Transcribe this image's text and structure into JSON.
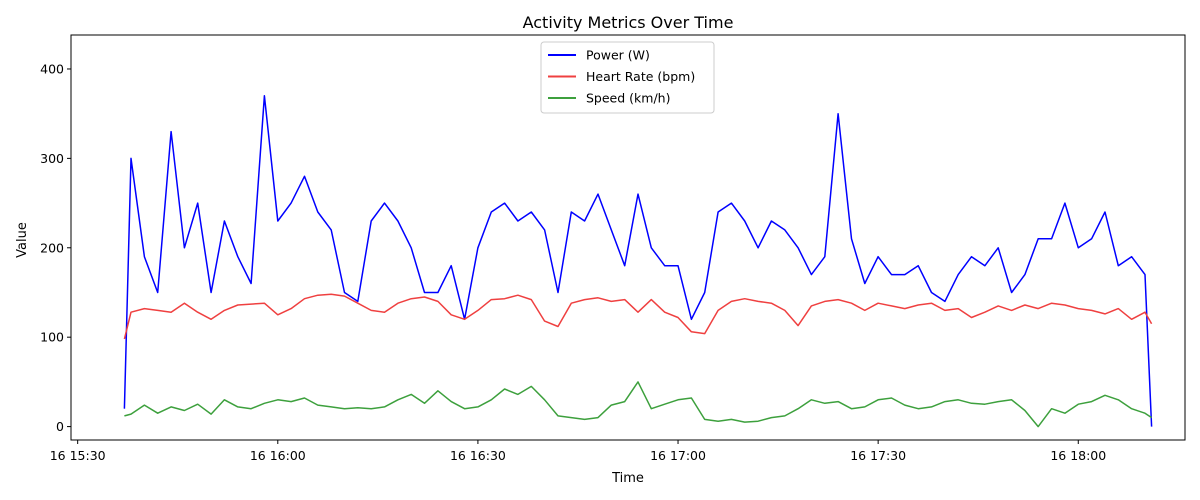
{
  "chart_data": {
    "type": "line",
    "title": "Activity Metrics Over Time",
    "xlabel": "Time",
    "ylabel": "Value",
    "xlim": [
      "2024-01-16 15:29:00",
      "2024-01-16 18:16:00"
    ],
    "ylim": [
      -15,
      438
    ],
    "x_ticks": [
      {
        "label": "16 15:30",
        "t": "2024-01-16 15:30"
      },
      {
        "label": "16 16:00",
        "t": "2024-01-16 16:00"
      },
      {
        "label": "16 16:30",
        "t": "2024-01-16 16:30"
      },
      {
        "label": "16 17:00",
        "t": "2024-01-16 17:00"
      },
      {
        "label": "16 17:30",
        "t": "2024-01-16 17:30"
      },
      {
        "label": "16 18:00",
        "t": "2024-01-16 18:00"
      }
    ],
    "y_ticks": [
      0,
      100,
      200,
      300,
      400
    ],
    "grid": false,
    "legend_position": "top-center",
    "series": [
      {
        "name": "Power (W)",
        "color": "#0000ff",
        "x": [
          "2024-01-16 15:37",
          "2024-01-16 15:38",
          "2024-01-16 15:40",
          "2024-01-16 15:42",
          "2024-01-16 15:44",
          "2024-01-16 15:46",
          "2024-01-16 15:48",
          "2024-01-16 15:50",
          "2024-01-16 15:52",
          "2024-01-16 15:54",
          "2024-01-16 15:56",
          "2024-01-16 15:58",
          "2024-01-16 16:00",
          "2024-01-16 16:02",
          "2024-01-16 16:04",
          "2024-01-16 16:06",
          "2024-01-16 16:08",
          "2024-01-16 16:10",
          "2024-01-16 16:12",
          "2024-01-16 16:14",
          "2024-01-16 16:16",
          "2024-01-16 16:18",
          "2024-01-16 16:20",
          "2024-01-16 16:22",
          "2024-01-16 16:24",
          "2024-01-16 16:26",
          "2024-01-16 16:28",
          "2024-01-16 16:30",
          "2024-01-16 16:32",
          "2024-01-16 16:34",
          "2024-01-16 16:36",
          "2024-01-16 16:38",
          "2024-01-16 16:40",
          "2024-01-16 16:42",
          "2024-01-16 16:44",
          "2024-01-16 16:46",
          "2024-01-16 16:48",
          "2024-01-16 16:50",
          "2024-01-16 16:52",
          "2024-01-16 16:54",
          "2024-01-16 16:56",
          "2024-01-16 16:58",
          "2024-01-16 17:00",
          "2024-01-16 17:02",
          "2024-01-16 17:04",
          "2024-01-16 17:06",
          "2024-01-16 17:08",
          "2024-01-16 17:10",
          "2024-01-16 17:12",
          "2024-01-16 17:14",
          "2024-01-16 17:16",
          "2024-01-16 17:18",
          "2024-01-16 17:20",
          "2024-01-16 17:22",
          "2024-01-16 17:24",
          "2024-01-16 17:26",
          "2024-01-16 17:28",
          "2024-01-16 17:30",
          "2024-01-16 17:32",
          "2024-01-16 17:34",
          "2024-01-16 17:36",
          "2024-01-16 17:38",
          "2024-01-16 17:40",
          "2024-01-16 17:42",
          "2024-01-16 17:44",
          "2024-01-16 17:46",
          "2024-01-16 17:48",
          "2024-01-16 17:50",
          "2024-01-16 17:52",
          "2024-01-16 17:54",
          "2024-01-16 17:56",
          "2024-01-16 17:58",
          "2024-01-16 18:00",
          "2024-01-16 18:02",
          "2024-01-16 18:04",
          "2024-01-16 18:06",
          "2024-01-16 18:08",
          "2024-01-16 18:10",
          "2024-01-16 18:11"
        ],
        "values": [
          20,
          300,
          190,
          150,
          330,
          200,
          250,
          150,
          230,
          190,
          160,
          370,
          230,
          250,
          280,
          240,
          220,
          150,
          140,
          230,
          250,
          230,
          200,
          150,
          150,
          180,
          120,
          200,
          240,
          250,
          230,
          240,
          220,
          150,
          240,
          230,
          260,
          220,
          180,
          260,
          200,
          180,
          180,
          120,
          150,
          240,
          250,
          230,
          200,
          230,
          220,
          200,
          170,
          190,
          350,
          210,
          160,
          190,
          170,
          170,
          180,
          150,
          140,
          170,
          190,
          180,
          200,
          150,
          170,
          210,
          210,
          250,
          200,
          210,
          240,
          180,
          190,
          170,
          0
        ]
      },
      {
        "name": "Heart Rate (bpm)",
        "color": "#ef4040",
        "x": [
          "2024-01-16 15:37",
          "2024-01-16 15:38",
          "2024-01-16 15:40",
          "2024-01-16 15:42",
          "2024-01-16 15:44",
          "2024-01-16 15:46",
          "2024-01-16 15:48",
          "2024-01-16 15:50",
          "2024-01-16 15:52",
          "2024-01-16 15:54",
          "2024-01-16 15:56",
          "2024-01-16 15:58",
          "2024-01-16 16:00",
          "2024-01-16 16:02",
          "2024-01-16 16:04",
          "2024-01-16 16:06",
          "2024-01-16 16:08",
          "2024-01-16 16:10",
          "2024-01-16 16:12",
          "2024-01-16 16:14",
          "2024-01-16 16:16",
          "2024-01-16 16:18",
          "2024-01-16 16:20",
          "2024-01-16 16:22",
          "2024-01-16 16:24",
          "2024-01-16 16:26",
          "2024-01-16 16:28",
          "2024-01-16 16:30",
          "2024-01-16 16:32",
          "2024-01-16 16:34",
          "2024-01-16 16:36",
          "2024-01-16 16:38",
          "2024-01-16 16:40",
          "2024-01-16 16:42",
          "2024-01-16 16:44",
          "2024-01-16 16:46",
          "2024-01-16 16:48",
          "2024-01-16 16:50",
          "2024-01-16 16:52",
          "2024-01-16 16:54",
          "2024-01-16 16:56",
          "2024-01-16 16:58",
          "2024-01-16 17:00",
          "2024-01-16 17:02",
          "2024-01-16 17:04",
          "2024-01-16 17:06",
          "2024-01-16 17:08",
          "2024-01-16 17:10",
          "2024-01-16 17:12",
          "2024-01-16 17:14",
          "2024-01-16 17:16",
          "2024-01-16 17:18",
          "2024-01-16 17:20",
          "2024-01-16 17:22",
          "2024-01-16 17:24",
          "2024-01-16 17:26",
          "2024-01-16 17:28",
          "2024-01-16 17:30",
          "2024-01-16 17:32",
          "2024-01-16 17:34",
          "2024-01-16 17:36",
          "2024-01-16 17:38",
          "2024-01-16 17:40",
          "2024-01-16 17:42",
          "2024-01-16 17:44",
          "2024-01-16 17:46",
          "2024-01-16 17:48",
          "2024-01-16 17:50",
          "2024-01-16 17:52",
          "2024-01-16 17:54",
          "2024-01-16 17:56",
          "2024-01-16 17:58",
          "2024-01-16 18:00",
          "2024-01-16 18:02",
          "2024-01-16 18:04",
          "2024-01-16 18:06",
          "2024-01-16 18:08",
          "2024-01-16 18:10",
          "2024-01-16 18:11"
        ],
        "values": [
          98,
          128,
          132,
          130,
          128,
          138,
          128,
          120,
          130,
          136,
          137,
          138,
          125,
          132,
          143,
          147,
          148,
          146,
          138,
          130,
          128,
          138,
          143,
          145,
          140,
          125,
          120,
          130,
          142,
          143,
          147,
          142,
          118,
          112,
          138,
          142,
          144,
          140,
          142,
          128,
          142,
          128,
          122,
          106,
          104,
          130,
          140,
          143,
          140,
          138,
          130,
          113,
          135,
          140,
          142,
          138,
          130,
          138,
          135,
          132,
          136,
          138,
          130,
          132,
          122,
          128,
          135,
          130,
          136,
          132,
          138,
          136,
          132,
          130,
          126,
          132,
          120,
          128,
          115
        ]
      },
      {
        "name": "Speed (km/h)",
        "color": "#3da03d",
        "x": [
          "2024-01-16 15:37",
          "2024-01-16 15:38",
          "2024-01-16 15:40",
          "2024-01-16 15:42",
          "2024-01-16 15:44",
          "2024-01-16 15:46",
          "2024-01-16 15:48",
          "2024-01-16 15:50",
          "2024-01-16 15:52",
          "2024-01-16 15:54",
          "2024-01-16 15:56",
          "2024-01-16 15:58",
          "2024-01-16 16:00",
          "2024-01-16 16:02",
          "2024-01-16 16:04",
          "2024-01-16 16:06",
          "2024-01-16 16:08",
          "2024-01-16 16:10",
          "2024-01-16 16:12",
          "2024-01-16 16:14",
          "2024-01-16 16:16",
          "2024-01-16 16:18",
          "2024-01-16 16:20",
          "2024-01-16 16:22",
          "2024-01-16 16:24",
          "2024-01-16 16:26",
          "2024-01-16 16:28",
          "2024-01-16 16:30",
          "2024-01-16 16:32",
          "2024-01-16 16:34",
          "2024-01-16 16:36",
          "2024-01-16 16:38",
          "2024-01-16 16:40",
          "2024-01-16 16:42",
          "2024-01-16 16:44",
          "2024-01-16 16:46",
          "2024-01-16 16:48",
          "2024-01-16 16:50",
          "2024-01-16 16:52",
          "2024-01-16 16:54",
          "2024-01-16 16:56",
          "2024-01-16 16:58",
          "2024-01-16 17:00",
          "2024-01-16 17:02",
          "2024-01-16 17:04",
          "2024-01-16 17:06",
          "2024-01-16 17:08",
          "2024-01-16 17:10",
          "2024-01-16 17:12",
          "2024-01-16 17:14",
          "2024-01-16 17:16",
          "2024-01-16 17:18",
          "2024-01-16 17:20",
          "2024-01-16 17:22",
          "2024-01-16 17:24",
          "2024-01-16 17:26",
          "2024-01-16 17:28",
          "2024-01-16 17:30",
          "2024-01-16 17:32",
          "2024-01-16 17:34",
          "2024-01-16 17:36",
          "2024-01-16 17:38",
          "2024-01-16 17:40",
          "2024-01-16 17:42",
          "2024-01-16 17:44",
          "2024-01-16 17:46",
          "2024-01-16 17:48",
          "2024-01-16 17:50",
          "2024-01-16 17:52",
          "2024-01-16 17:54",
          "2024-01-16 17:56",
          "2024-01-16 17:58",
          "2024-01-16 18:00",
          "2024-01-16 18:02",
          "2024-01-16 18:04",
          "2024-01-16 18:06",
          "2024-01-16 18:08",
          "2024-01-16 18:10",
          "2024-01-16 18:11"
        ],
        "values": [
          12,
          14,
          24,
          15,
          22,
          18,
          25,
          14,
          30,
          22,
          20,
          26,
          30,
          28,
          32,
          24,
          22,
          20,
          21,
          20,
          22,
          30,
          36,
          26,
          40,
          28,
          20,
          22,
          30,
          42,
          36,
          45,
          30,
          12,
          10,
          8,
          10,
          24,
          28,
          50,
          20,
          25,
          30,
          32,
          8,
          6,
          8,
          5,
          6,
          10,
          12,
          20,
          30,
          26,
          28,
          20,
          22,
          30,
          32,
          24,
          20,
          22,
          28,
          30,
          26,
          25,
          28,
          30,
          18,
          0,
          20,
          15,
          25,
          28,
          35,
          30,
          20,
          15,
          10
        ]
      }
    ]
  }
}
